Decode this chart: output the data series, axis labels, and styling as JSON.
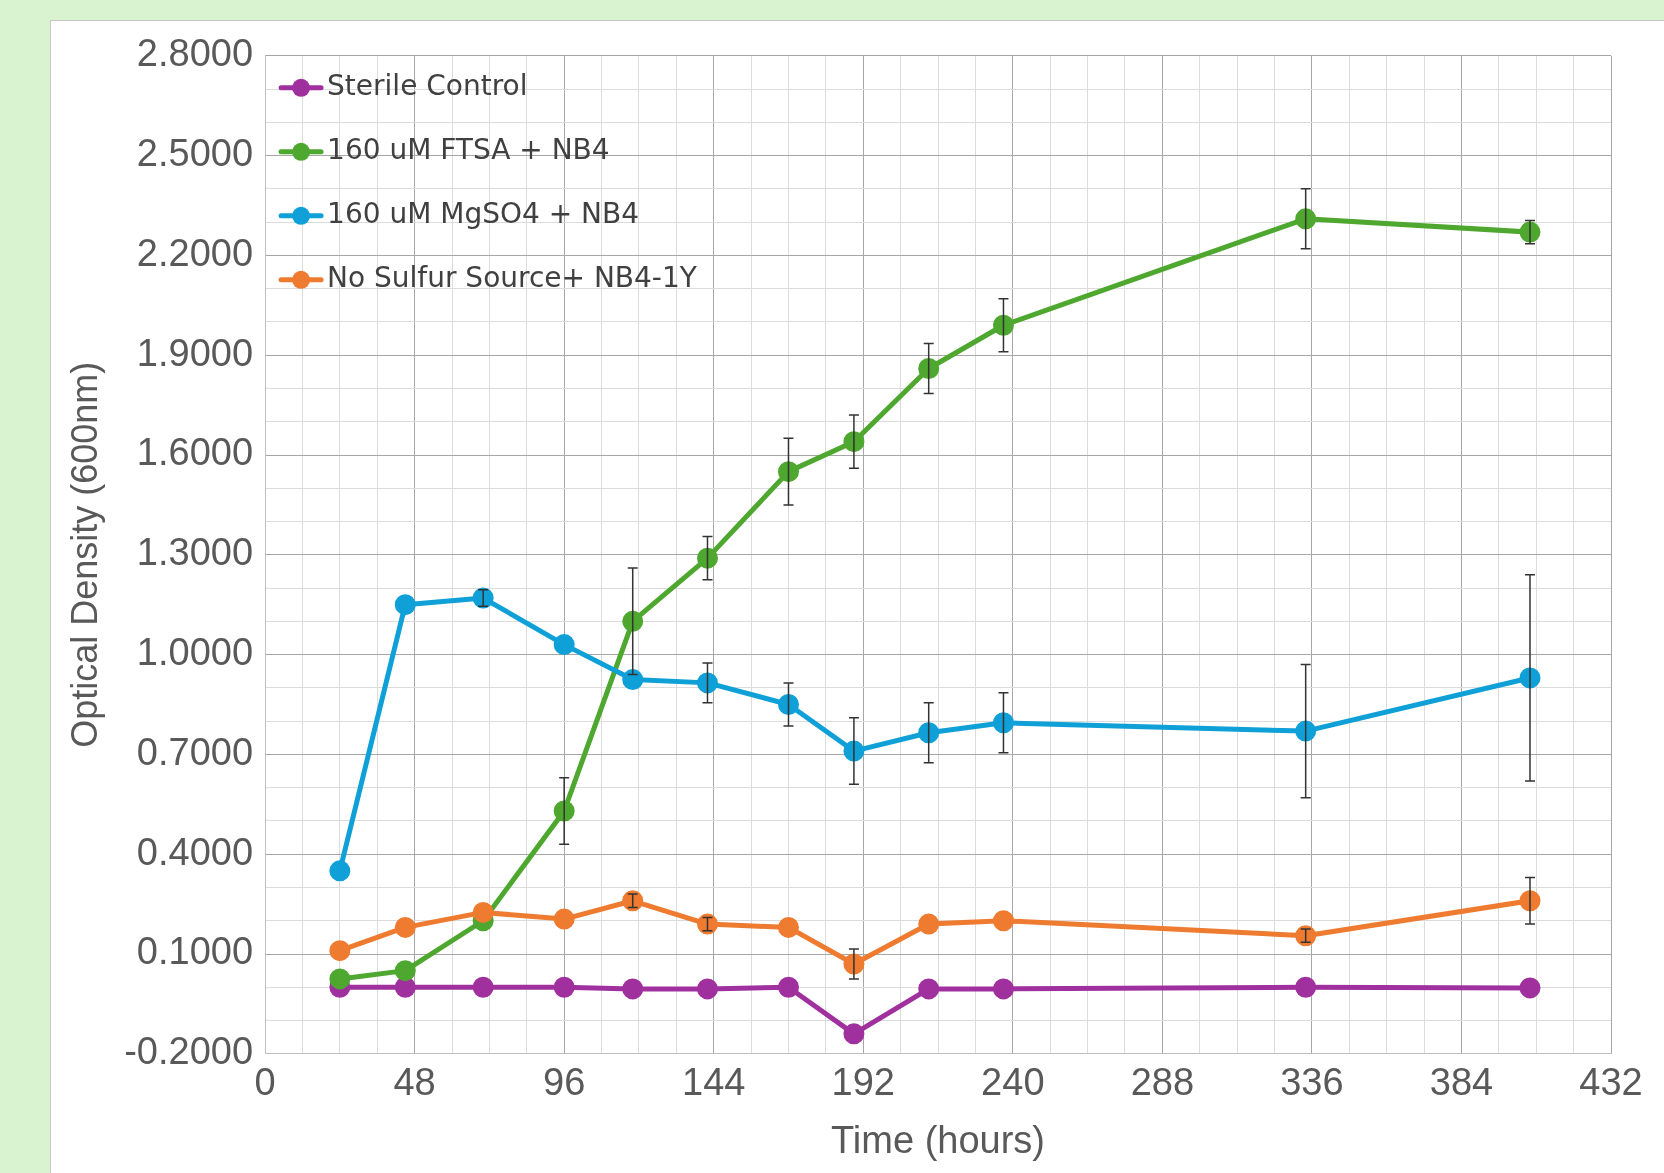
{
  "chart_data": {
    "type": "line",
    "xlabel": "Time (hours)",
    "ylabel": "Optical Density (600nm)",
    "xlim": [
      0,
      432
    ],
    "xticks": [
      0,
      {
        "value": 12,
        "label": null
      },
      {
        "value": 24,
        "label": null
      },
      {
        "value": 36,
        "label": null
      },
      48,
      {
        "value": 60,
        "label": null
      },
      {
        "value": 72,
        "label": null
      },
      {
        "value": 84,
        "label": null
      },
      96,
      {
        "value": 108,
        "label": null
      },
      {
        "value": 120,
        "label": null
      },
      {
        "value": 132,
        "label": null
      },
      144,
      {
        "value": 156,
        "label": null
      },
      {
        "value": 168,
        "label": null
      },
      {
        "value": 180,
        "label": null
      },
      192,
      {
        "value": 204,
        "label": null
      },
      {
        "value": 216,
        "label": null
      },
      {
        "value": 228,
        "label": null
      },
      240,
      {
        "value": 252,
        "label": null
      },
      {
        "value": 264,
        "label": null
      },
      {
        "value": 276,
        "label": null
      },
      288,
      {
        "value": 300,
        "label": null
      },
      {
        "value": 312,
        "label": null
      },
      {
        "value": 324,
        "label": null
      },
      336,
      {
        "value": 348,
        "label": null
      },
      {
        "value": 360,
        "label": null
      },
      {
        "value": 372,
        "label": null
      },
      384,
      {
        "value": 396,
        "label": null
      },
      {
        "value": 408,
        "label": null
      },
      {
        "value": 420,
        "label": null
      },
      432
    ],
    "ylim": [
      -0.2,
      2.8
    ],
    "yticks": [
      {
        "value": -0.2,
        "label": "-0.2000"
      },
      {
        "value": -0.1,
        "label": null
      },
      {
        "value": 0,
        "label": null
      },
      {
        "value": 0.1,
        "label": "0.1000"
      },
      {
        "value": 0.2,
        "label": null
      },
      {
        "value": 0.3,
        "label": null
      },
      {
        "value": 0.4,
        "label": "0.4000"
      },
      {
        "value": 0.5,
        "label": null
      },
      {
        "value": 0.6,
        "label": null
      },
      {
        "value": 0.7,
        "label": "0.7000"
      },
      {
        "value": 0.8,
        "label": null
      },
      {
        "value": 0.9,
        "label": null
      },
      {
        "value": 1.0,
        "label": "1.0000"
      },
      {
        "value": 1.1,
        "label": null
      },
      {
        "value": 1.2,
        "label": null
      },
      {
        "value": 1.3,
        "label": "1.3000"
      },
      {
        "value": 1.4,
        "label": null
      },
      {
        "value": 1.5,
        "label": null
      },
      {
        "value": 1.6,
        "label": "1.6000"
      },
      {
        "value": 1.7,
        "label": null
      },
      {
        "value": 1.8,
        "label": null
      },
      {
        "value": 1.9,
        "label": "1.9000"
      },
      {
        "value": 2.0,
        "label": null
      },
      {
        "value": 2.1,
        "label": null
      },
      {
        "value": 2.2,
        "label": "2.2000"
      },
      {
        "value": 2.3,
        "label": null
      },
      {
        "value": 2.4,
        "label": null
      },
      {
        "value": 2.5,
        "label": "2.5000"
      },
      {
        "value": 2.6,
        "label": null
      },
      {
        "value": 2.7,
        "label": null
      },
      {
        "value": 2.8,
        "label": "2.8000"
      }
    ],
    "grid": true,
    "legend": "top left",
    "marker": "circle",
    "line_style": "solid",
    "x": [
      24,
      45,
      70,
      96,
      118,
      142,
      168,
      189,
      213,
      237,
      334,
      406
    ],
    "series": [
      {
        "name": "Sterile Control",
        "color": "#a0309e",
        "values": [
          0.0,
          0.0,
          0.0,
          0.0,
          -0.005,
          -0.005,
          0.0,
          -0.14,
          -0.005,
          -0.005,
          0.0,
          -0.002
        ]
      },
      {
        "name": "160 uM FTSA + NB4",
        "color": "#4ea72e",
        "values": [
          0.025,
          0.05,
          0.2,
          0.53,
          1.1,
          1.29,
          1.55,
          1.64,
          1.86,
          1.99,
          2.31,
          2.27
        ],
        "errors": [
          null,
          null,
          null,
          0.1,
          0.16,
          0.065,
          0.1,
          0.08,
          0.075,
          0.08,
          0.09,
          0.035
        ]
      },
      {
        "name": "160 uM MgSO4 + NB4",
        "color": "#0fa0d8",
        "values": [
          0.35,
          1.15,
          1.17,
          1.03,
          0.925,
          0.915,
          0.85,
          0.71,
          0.765,
          0.795,
          0.77,
          0.93
        ],
        "errors": [
          null,
          null,
          0.025,
          null,
          null,
          0.06,
          0.065,
          0.1,
          0.09,
          0.09,
          0.2,
          0.31
        ]
      },
      {
        "name": "No Sulfur Source+ NB4-1Y",
        "color": "#ee7b30",
        "values": [
          0.11,
          0.18,
          0.225,
          0.205,
          0.26,
          0.19,
          0.18,
          0.07,
          0.19,
          0.2,
          0.155,
          0.26
        ],
        "errors": [
          null,
          null,
          null,
          null,
          0.02,
          0.02,
          null,
          0.045,
          null,
          null,
          0.02,
          0.07
        ]
      }
    ]
  }
}
